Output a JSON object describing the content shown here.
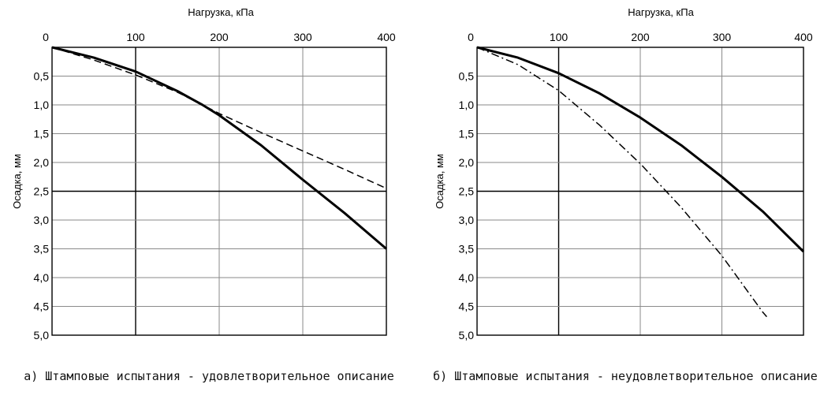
{
  "chart_data": [
    {
      "type": "line",
      "caption": "а) Штамповые испытания - удовлетворительное описание",
      "xlabel": "Нагрузка, кПа",
      "ylabel": "Осадка, мм",
      "xlim": [
        0,
        400
      ],
      "ylim": [
        0,
        5
      ],
      "y_inverted": true,
      "x_axis_position": "top",
      "x_ticks": [
        "0",
        "100",
        "200",
        "300",
        "400"
      ],
      "y_ticks": [
        "0",
        "0,5",
        "1,0",
        "1,5",
        "2,0",
        "2,5",
        "3,0",
        "3,5",
        "4,0",
        "4,5",
        "5,0"
      ],
      "grid": true,
      "series": [
        {
          "style": "solid",
          "color": "#000000",
          "x": [
            0,
            50,
            100,
            150,
            180,
            200,
            250,
            300,
            350,
            400
          ],
          "y": [
            0,
            0.18,
            0.42,
            0.76,
            1.0,
            1.18,
            1.7,
            2.3,
            2.88,
            3.5
          ]
        },
        {
          "style": "dashed",
          "color": "#000000",
          "x": [
            0,
            50,
            100,
            150,
            180,
            200,
            250,
            300,
            350,
            400
          ],
          "y": [
            0,
            0.22,
            0.48,
            0.78,
            1.0,
            1.15,
            1.48,
            1.8,
            2.12,
            2.45
          ]
        }
      ]
    },
    {
      "type": "line",
      "caption": "б) Штамповые испытания - неудовлетворительное описание",
      "xlabel": "Нагрузка, кПа",
      "ylabel": "Осадка, мм",
      "xlim": [
        0,
        400
      ],
      "ylim": [
        0,
        5
      ],
      "y_inverted": true,
      "x_axis_position": "top",
      "x_ticks": [
        "0",
        "100",
        "200",
        "300",
        "400"
      ],
      "y_ticks": [
        "0",
        "0,5",
        "1,0",
        "1,5",
        "2,0",
        "2,5",
        "3,0",
        "3,5",
        "4,0",
        "4,5",
        "5,0"
      ],
      "grid": true,
      "series": [
        {
          "style": "solid",
          "color": "#000000",
          "x": [
            0,
            50,
            100,
            150,
            200,
            250,
            300,
            350,
            400
          ],
          "y": [
            0,
            0.18,
            0.45,
            0.8,
            1.22,
            1.7,
            2.25,
            2.85,
            3.55
          ]
        },
        {
          "style": "dash-dot",
          "color": "#000000",
          "x": [
            0,
            50,
            100,
            150,
            200,
            250,
            300,
            350,
            355
          ],
          "y": [
            0,
            0.3,
            0.75,
            1.35,
            2.02,
            2.78,
            3.62,
            4.6,
            4.68
          ]
        }
      ]
    }
  ]
}
